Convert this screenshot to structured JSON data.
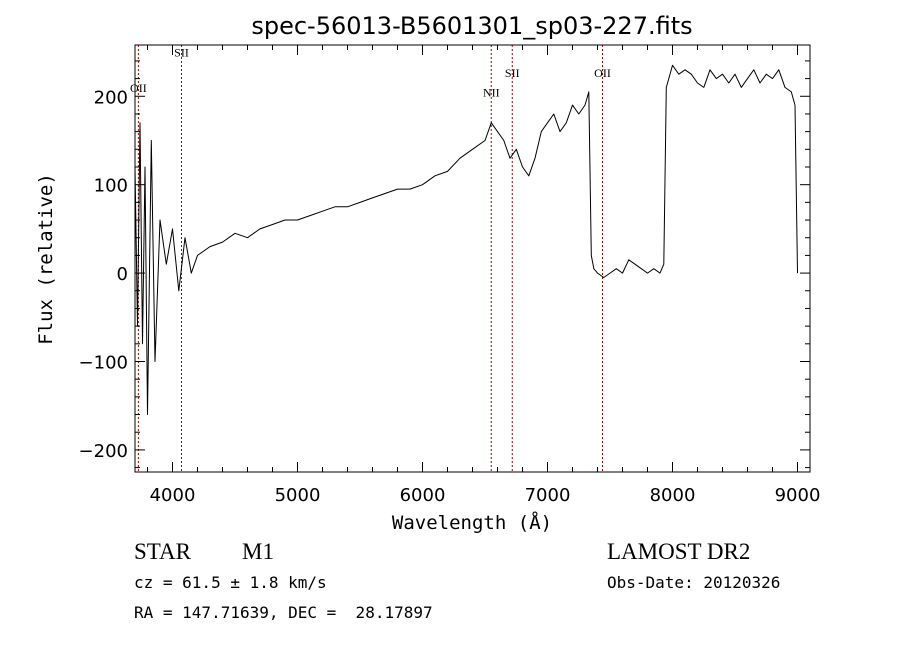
{
  "chart_data": {
    "type": "line",
    "title": "spec-56013-B5601301_sp03-227.fits",
    "xlabel": "Wavelength (Å)",
    "ylabel": "Flux (relative)",
    "xlim": [
      3700,
      9100
    ],
    "ylim": [
      -225,
      258
    ],
    "xticks": [
      4000,
      5000,
      6000,
      7000,
      8000,
      9000
    ],
    "yticks": [
      -200,
      -100,
      0,
      100,
      200
    ],
    "grid": false,
    "legend": "none",
    "line_color": "#000000",
    "marker_color": "#a00000",
    "lines": [
      {
        "name": "OII",
        "x": 3727,
        "label_y": 205
      },
      {
        "name": "SII",
        "x": 4072,
        "label_y": 245
      },
      {
        "name": "NII",
        "x": 6550,
        "label_y": 200
      },
      {
        "name": "SII",
        "x": 6718,
        "label_y": 222
      },
      {
        "name": "OII",
        "x": 7440,
        "label_y": 222
      }
    ],
    "series": [
      {
        "x": [
          3700,
          3720,
          3740,
          3760,
          3780,
          3800,
          3830,
          3860,
          3900,
          3950,
          4000,
          4050,
          4100,
          4150,
          4200,
          4300,
          4400,
          4500,
          4600,
          4700,
          4800,
          4900,
          5000,
          5100,
          5200,
          5300,
          5400,
          5500,
          5600,
          5700,
          5800,
          5900,
          6000,
          6100,
          6200,
          6300,
          6400,
          6500,
          6550,
          6600,
          6650,
          6700,
          6750,
          6800,
          6850,
          6900,
          6950,
          7000,
          7050,
          7100,
          7150,
          7200,
          7250,
          7300,
          7330,
          7350,
          7370,
          7400,
          7450,
          7500,
          7550,
          7600,
          7650,
          7700,
          7750,
          7800,
          7850,
          7900,
          7930,
          7950,
          7970,
          8000,
          8050,
          8100,
          8150,
          8200,
          8250,
          8300,
          8350,
          8400,
          8450,
          8500,
          8550,
          8600,
          8650,
          8700,
          8750,
          8800,
          8850,
          8900,
          8950,
          8980,
          9000
        ],
        "y": [
          120,
          -60,
          170,
          -80,
          120,
          -160,
          150,
          -100,
          60,
          10,
          50,
          -20,
          40,
          0,
          20,
          30,
          35,
          45,
          40,
          50,
          55,
          60,
          60,
          65,
          70,
          75,
          75,
          80,
          85,
          90,
          95,
          95,
          100,
          110,
          115,
          130,
          140,
          150,
          170,
          160,
          150,
          130,
          140,
          120,
          110,
          130,
          160,
          170,
          180,
          160,
          170,
          190,
          180,
          190,
          205,
          20,
          5,
          0,
          -5,
          0,
          5,
          0,
          15,
          10,
          5,
          0,
          5,
          0,
          10,
          210,
          220,
          235,
          225,
          230,
          225,
          215,
          210,
          230,
          220,
          225,
          215,
          225,
          210,
          220,
          230,
          215,
          225,
          220,
          230,
          210,
          205,
          190,
          0
        ]
      }
    ]
  },
  "info": {
    "object_class": "STAR",
    "subclass": "M1",
    "survey": "LAMOST DR2",
    "cz": "cz = 61.5 ± 1.8 km/s",
    "obs_date": "Obs-Date: 20120326",
    "coords": "RA = 147.71639, DEC =  28.17897"
  }
}
